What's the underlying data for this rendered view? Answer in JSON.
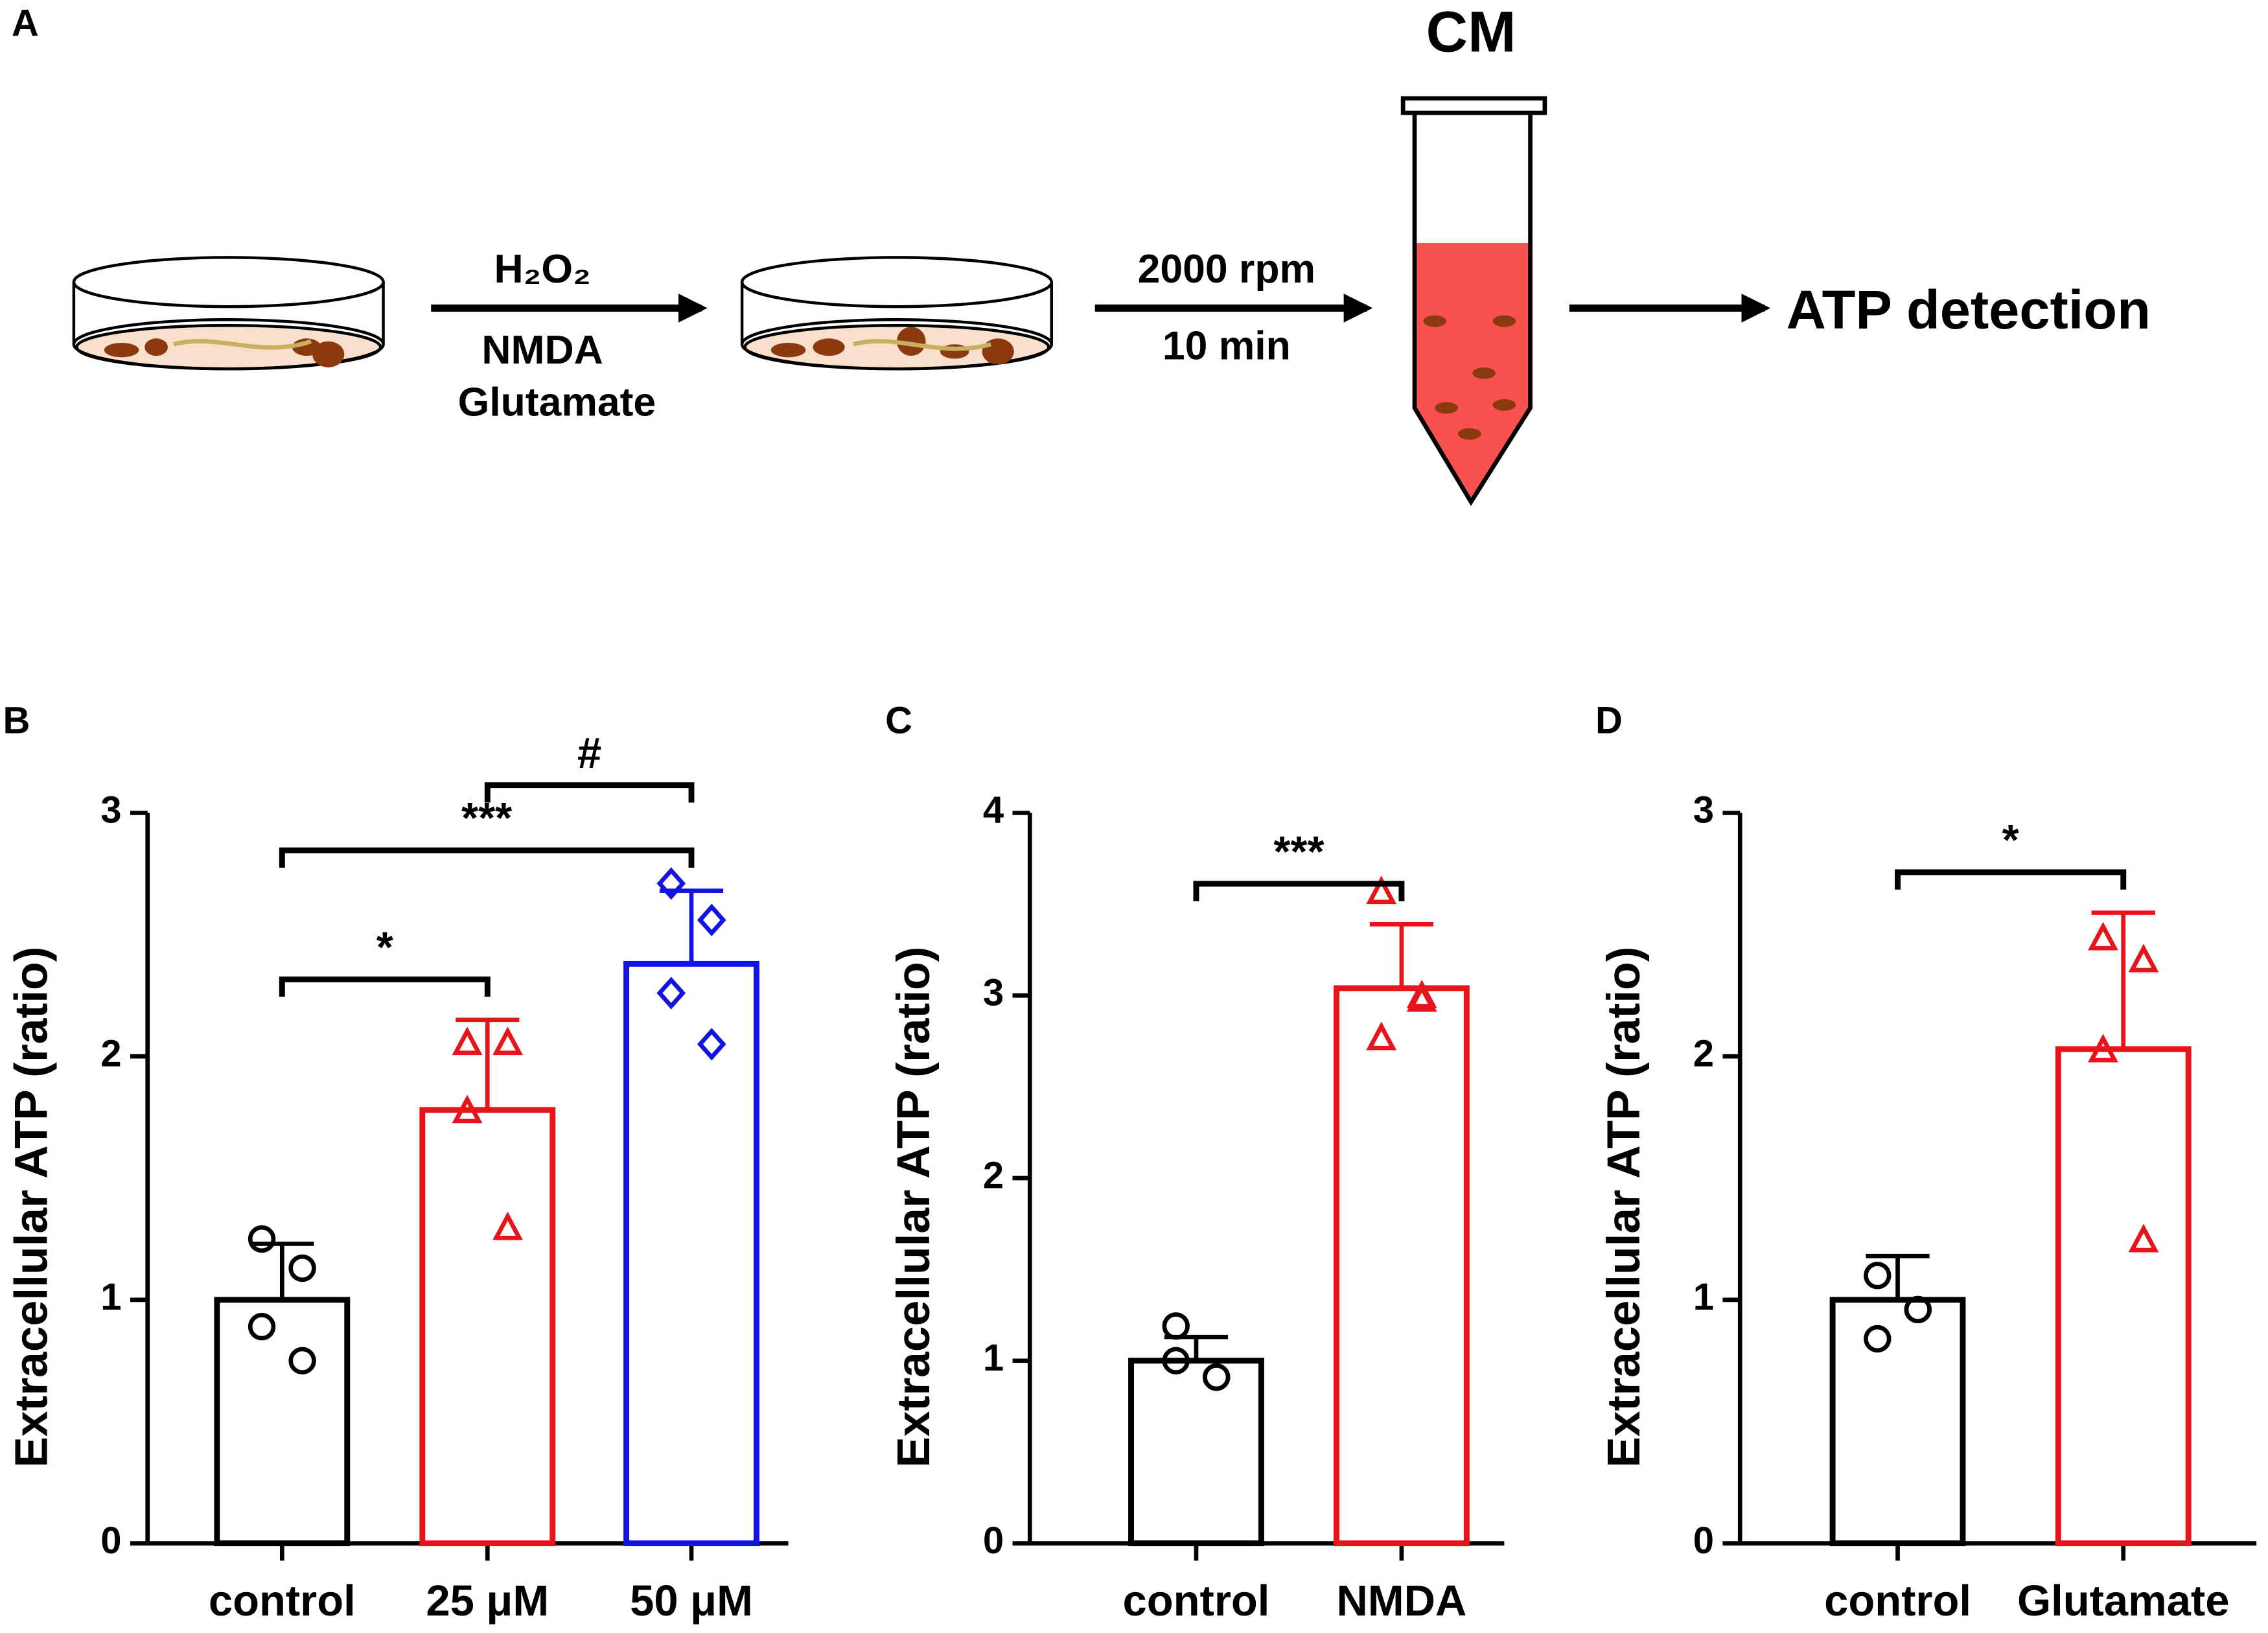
{
  "schematic": {
    "panel": "A",
    "treatments": [
      "H₂O₂",
      "NMDA",
      "Glutamate"
    ],
    "centrifuge": [
      "2000 rpm",
      "10 min"
    ],
    "tube_label": "CM",
    "output": "ATP detection"
  },
  "chart_data": [
    {
      "type": "bar",
      "panel": "B",
      "ylabel": "Extracellular ATP (ratio)",
      "ylim": [
        0,
        3
      ],
      "yticks": [
        0,
        1,
        2,
        3
      ],
      "categories": [
        "control",
        "25 μM",
        "50 μM"
      ],
      "values": [
        1.0,
        1.78,
        2.38
      ],
      "errors": [
        0.23,
        0.37,
        0.3
      ],
      "colors": [
        "#000000",
        "#e8141c",
        "#1414e0"
      ],
      "markers": [
        "circle",
        "triangle",
        "diamond"
      ],
      "points": [
        [
          1.25,
          1.13,
          0.89,
          0.75
        ],
        [
          2.05,
          2.05,
          1.77,
          1.29
        ],
        [
          2.71,
          2.56,
          2.26,
          2.05
        ]
      ],
      "comparisons": [
        {
          "from": 0,
          "to": 1,
          "label": "*"
        },
        {
          "from": 0,
          "to": 2,
          "label": "***"
        },
        {
          "from": 1,
          "to": 2,
          "label": "#"
        }
      ]
    },
    {
      "type": "bar",
      "panel": "C",
      "ylabel": "Extracellular ATP (ratio)",
      "ylim": [
        0,
        4
      ],
      "yticks": [
        0,
        1,
        2,
        3,
        4
      ],
      "categories": [
        "control",
        "NMDA"
      ],
      "values": [
        1.0,
        3.04
      ],
      "errors": [
        0.13,
        0.35
      ],
      "colors": [
        "#000000",
        "#e8141c"
      ],
      "markers": [
        "circle",
        "triangle"
      ],
      "points": [
        [
          1.19,
          0.91,
          1.0,
          0.91
        ],
        [
          3.56,
          2.97,
          2.76,
          2.99
        ]
      ],
      "comparisons": [
        {
          "from": 0,
          "to": 1,
          "label": "***"
        }
      ]
    },
    {
      "type": "bar",
      "panel": "D",
      "ylabel": "Extracellular ATP (ratio)",
      "ylim": [
        0,
        3
      ],
      "yticks": [
        0,
        1,
        2,
        3
      ],
      "categories": [
        "control",
        "Glutamate"
      ],
      "values": [
        1.0,
        2.03
      ],
      "errors": [
        0.18,
        0.56
      ],
      "colors": [
        "#000000",
        "#e8141c"
      ],
      "markers": [
        "circle",
        "triangle"
      ],
      "points": [
        [
          1.1,
          0.96,
          0.84,
          0.96
        ],
        [
          2.48,
          2.39,
          2.02,
          1.24
        ]
      ],
      "comparisons": [
        {
          "from": 0,
          "to": 1,
          "label": "*"
        }
      ]
    }
  ]
}
